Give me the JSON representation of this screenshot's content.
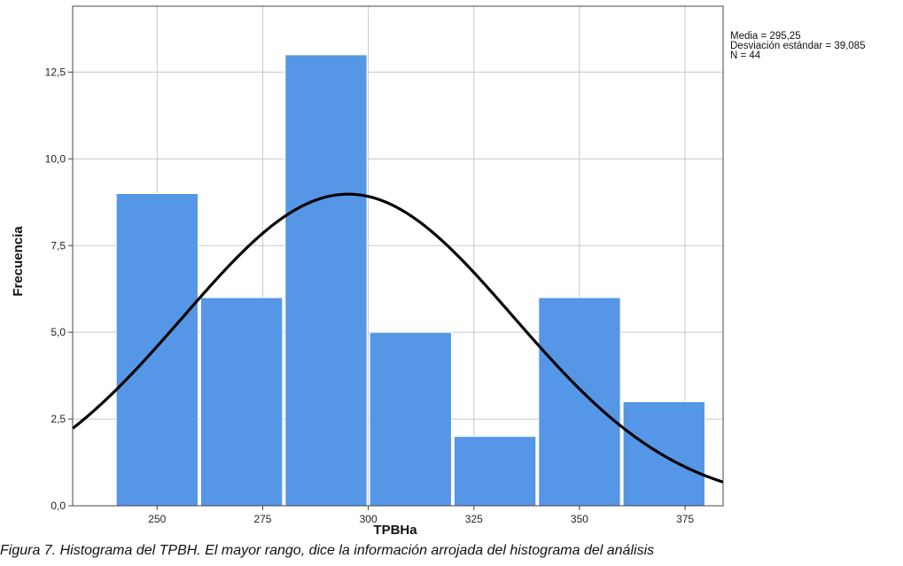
{
  "chart_data": {
    "type": "bar",
    "subtype": "histogram-with-normal-curve",
    "bins": [
      {
        "x0": 240,
        "x1": 260,
        "label": "250",
        "count": 9
      },
      {
        "x0": 260,
        "x1": 280,
        "label": "275",
        "count": 6
      },
      {
        "x0": 280,
        "x1": 300,
        "label": "300",
        "count": 13
      },
      {
        "x0": 300,
        "x1": 320,
        "label": "325",
        "count": 5
      },
      {
        "x0": 320,
        "x1": 340,
        "label": "",
        "count": 2
      },
      {
        "x0": 340,
        "x1": 360,
        "label": "350",
        "count": 6
      },
      {
        "x0": 360,
        "x1": 380,
        "label": "375",
        "count": 3
      }
    ],
    "x_ticks": [
      {
        "value": 250,
        "label": "250"
      },
      {
        "value": 275,
        "label": "275"
      },
      {
        "value": 300,
        "label": "300"
      },
      {
        "value": 325,
        "label": "325"
      },
      {
        "value": 350,
        "label": "350"
      },
      {
        "value": 375,
        "label": "375"
      }
    ],
    "xlim": [
      230,
      384
    ],
    "ylim": [
      0,
      14.4
    ],
    "y_ticks": [
      {
        "value": 0,
        "label": "0,0"
      },
      {
        "value": 2.5,
        "label": "2,5"
      },
      {
        "value": 5,
        "label": "5,0"
      },
      {
        "value": 7.5,
        "label": "7,5"
      },
      {
        "value": 10,
        "label": "10,0"
      },
      {
        "value": 12.5,
        "label": "12,5"
      }
    ],
    "xlabel": "TPBHa",
    "ylabel": "Frecuencia",
    "normal_curve": {
      "mean": 295.25,
      "sd": 39.085,
      "n": 44,
      "bin_width": 20
    },
    "stats_text": [
      "Media = 295,25",
      "Desviación estándar = 39,085",
      "N = 44"
    ],
    "grid": true,
    "bar_color": "#5596e6",
    "curve_color": "#000000"
  },
  "caption": "Figura 7. Histograma del TPBH. El mayor rango, dice la información arrojada del histograma del análisis"
}
